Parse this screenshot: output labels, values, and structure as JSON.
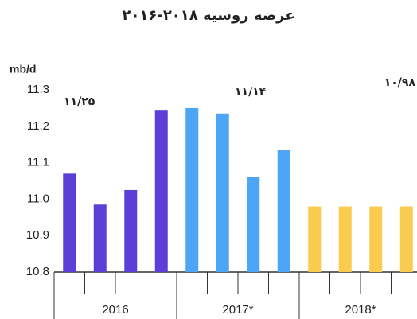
{
  "chart_data": {
    "type": "bar",
    "title": "عرضه روسیه ۲۰۱۸-۲۰۱۶",
    "y_label": "mb/d",
    "groups": [
      {
        "name": "2016",
        "color": "#5b3fd6",
        "values": [
          11.07,
          10.985,
          11.025,
          11.245
        ]
      },
      {
        "name": "2017*",
        "color": "#4da6f5",
        "values": [
          11.25,
          11.235,
          11.06,
          11.135
        ]
      },
      {
        "name": "2018*",
        "color": "#f9cc4f",
        "values": [
          10.98,
          10.98,
          10.98,
          10.98
        ]
      }
    ],
    "annotations": [
      "۱۱/۲۵",
      "۱۱/۱۴",
      "۱۰/۹۸"
    ],
    "ylim": [
      10.8,
      11.3
    ],
    "yticks": [
      10.8,
      10.9,
      {
        "value": 11,
        "label": "11.0"
      },
      11.1,
      11.2,
      11.3
    ],
    "grid": false
  }
}
